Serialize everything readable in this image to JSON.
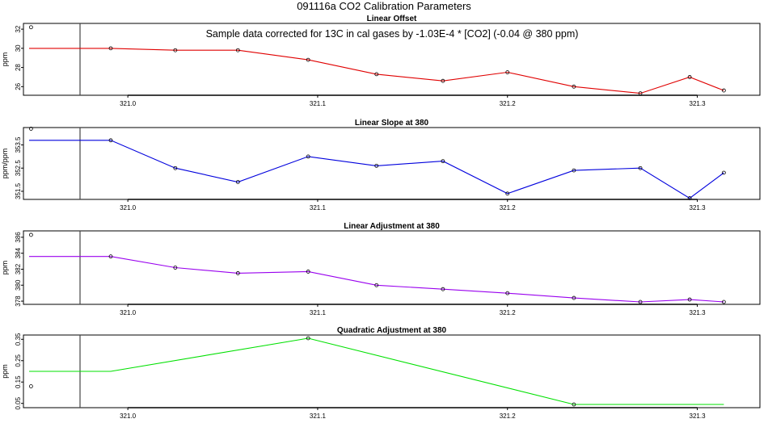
{
  "figure_title": "091116a   CO2 Calibration Parameters",
  "chart_data": [
    {
      "type": "line",
      "title": "Linear Offset",
      "ylabel": "ppm",
      "color": "#e00000",
      "annotation": "Sample data corrected for 13C in cal gases by -1.03E-4 * [CO2] (-0.04 @ 380 ppm)",
      "xlim": [
        320.945,
        321.333
      ],
      "ylim": [
        25.1,
        32.6
      ],
      "xticks": [
        "321.0",
        "321.1",
        "321.2",
        "321.3"
      ],
      "yticks": [
        "26",
        "28",
        "30",
        "32"
      ],
      "initial": {
        "x": 320.949,
        "y": 32.2
      },
      "x": [
        320.948,
        320.991,
        321.025,
        321.058,
        321.095,
        321.131,
        321.166,
        321.2,
        321.235,
        321.27,
        321.296,
        321.314
      ],
      "y": [
        30.0,
        30.0,
        29.8,
        29.8,
        28.8,
        27.3,
        26.6,
        27.5,
        26.0,
        25.3,
        27.0,
        25.6
      ]
    },
    {
      "type": "line",
      "title": "Linear Slope at 380",
      "ylabel": "ppm/ppm",
      "color": "#0000dd",
      "xlim": [
        320.945,
        321.333
      ],
      "ylim": [
        351.15,
        354.25
      ],
      "xticks": [
        "321.0",
        "321.1",
        "321.2",
        "321.3"
      ],
      "yticks": [
        "351.5",
        "352.5",
        "353.5"
      ],
      "initial": {
        "x": 320.949,
        "y": 354.2
      },
      "x": [
        320.948,
        320.991,
        321.025,
        321.058,
        321.095,
        321.131,
        321.166,
        321.2,
        321.235,
        321.27,
        321.296,
        321.314
      ],
      "y": [
        353.7,
        353.7,
        352.5,
        351.9,
        353.0,
        352.6,
        352.8,
        351.4,
        352.4,
        352.5,
        351.2,
        352.3
      ]
    },
    {
      "type": "line",
      "title": "Linear Adjustment at 380",
      "ylabel": "ppm",
      "color": "#9900ee",
      "xlim": [
        320.945,
        321.333
      ],
      "ylim": [
        377.6,
        386.8
      ],
      "xticks": [
        "321.0",
        "321.1",
        "321.2",
        "321.3"
      ],
      "yticks": [
        "378",
        "380",
        "382",
        "384",
        "386"
      ],
      "initial": {
        "x": 320.949,
        "y": 386.3
      },
      "x": [
        320.948,
        320.991,
        321.025,
        321.058,
        321.095,
        321.131,
        321.166,
        321.2,
        321.235,
        321.27,
        321.296,
        321.314
      ],
      "y": [
        383.6,
        383.6,
        382.2,
        381.5,
        381.7,
        380.0,
        379.5,
        379.0,
        378.4,
        377.9,
        378.2,
        377.9
      ]
    },
    {
      "type": "line",
      "title": "Quadratic Adjustment at 380",
      "ylabel": "ppm",
      "color": "#00e000",
      "xlim": [
        320.945,
        321.333
      ],
      "ylim": [
        0.03,
        0.37
      ],
      "xticks": [
        "321.0",
        "321.1",
        "321.2",
        "321.3"
      ],
      "yticks": [
        "0.05",
        "0.15",
        "0.25",
        "0.35"
      ],
      "initial": {
        "x": 320.949,
        "y": 0.13
      },
      "x": [
        320.948,
        320.991,
        321.095,
        321.235,
        321.314
      ],
      "y": [
        0.2,
        0.2,
        0.355,
        0.045,
        0.045
      ],
      "markers_at": [
        321.095,
        321.235
      ]
    }
  ]
}
